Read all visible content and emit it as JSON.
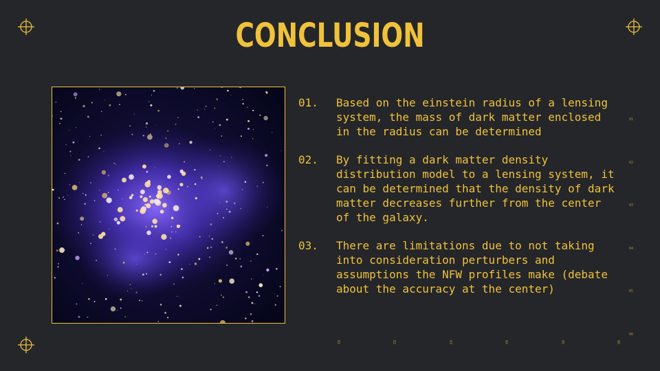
{
  "title": "CONCLUSION",
  "items": [
    {
      "num": "01.",
      "text": "Based on the einstein radius of a lensing system, the mass of dark matter enclosed in the radius can be determined"
    },
    {
      "num": "02.",
      "text": "By fitting a dark matter density distribution model to a lensing system, it can be determined that the density of dark matter decreases further from the center of the galaxy."
    },
    {
      "num": "03.",
      "text": "There are limitations due to not taking into consideration perturbers and assumptions the NFW profiles make (debate about the accuracy at the center)"
    }
  ],
  "right_ticks": [
    "01",
    "02",
    "03",
    "04",
    "05",
    "06"
  ],
  "bottom_ticks": [
    "01",
    "02",
    "03",
    "04",
    "05",
    "06"
  ],
  "colors": {
    "accent": "#f0c23b",
    "background": "#25262a",
    "glow": "#6a4cff"
  },
  "icons": [
    "crosshair-icon"
  ],
  "image": "galaxy-cluster-image"
}
